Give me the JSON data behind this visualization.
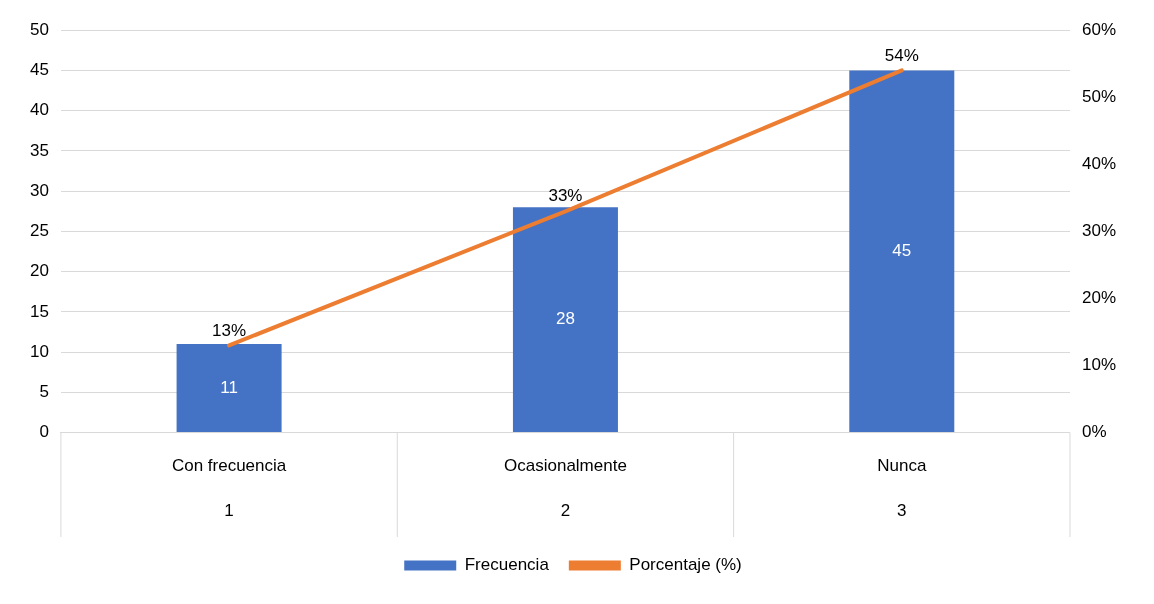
{
  "chart_data": {
    "type": "bar",
    "categories": [
      "Con frecuencia\n1",
      "Ocasionalmente\n2",
      "Nunca\n3"
    ],
    "series": [
      {
        "name": "Frecuencia",
        "color": "#4472c4",
        "values": [
          11,
          28,
          45
        ],
        "value_labels": [
          "11",
          "28",
          "45"
        ]
      },
      {
        "name": "Porcentaje (%)",
        "type": "line",
        "axis": "y2",
        "color": "#ed7d31",
        "values": [
          13,
          33,
          54
        ],
        "value_labels": [
          "13%",
          "33%",
          "54%"
        ]
      }
    ],
    "ylim": [
      0,
      50
    ],
    "yticks": [
      0,
      5,
      10,
      15,
      20,
      25,
      30,
      35,
      40,
      45,
      50
    ],
    "y2lim": [
      0,
      60
    ],
    "y2ticks": [
      {
        "value": 0,
        "label": "0%"
      },
      {
        "value": 10,
        "label": "10%"
      },
      {
        "value": 20,
        "label": "20%"
      },
      {
        "value": 30,
        "label": "30%"
      },
      {
        "value": 40,
        "label": "40%"
      },
      {
        "value": 50,
        "label": "50%"
      },
      {
        "value": 60,
        "label": "60%"
      }
    ],
    "grid": "y",
    "legend": "bottom",
    "marker": "none",
    "line_style": "solid"
  }
}
